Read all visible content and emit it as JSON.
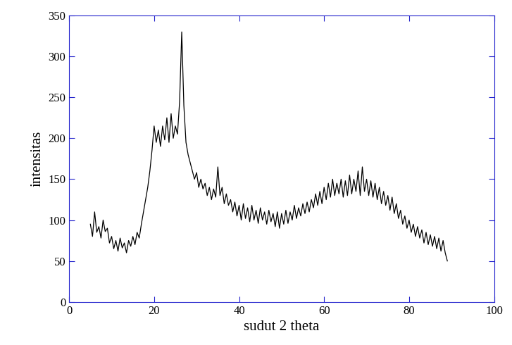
{
  "chart_data": {
    "type": "line",
    "x_label": "sudut 2 theta",
    "y_label": "intensitas",
    "color": "#000000",
    "xlim": [
      0,
      100
    ],
    "xticks": [
      0,
      20,
      40,
      60,
      80,
      100
    ],
    "ylim": [
      0,
      350
    ],
    "yticks": [
      0,
      50,
      100,
      150,
      200,
      250,
      300,
      350
    ],
    "grid": false,
    "x": [
      5.0,
      5.5,
      6.0,
      6.5,
      7.0,
      7.5,
      8.0,
      8.5,
      9.0,
      9.5,
      10.0,
      10.5,
      11.0,
      11.5,
      12.0,
      12.5,
      13.0,
      13.5,
      14.0,
      14.5,
      15.0,
      15.5,
      16.0,
      16.5,
      17.0,
      17.5,
      18.0,
      18.5,
      19.0,
      19.5,
      20.0,
      20.5,
      21.0,
      21.5,
      22.0,
      22.5,
      23.0,
      23.5,
      24.0,
      24.5,
      25.0,
      25.5,
      26.0,
      26.5,
      27.0,
      27.5,
      28.0,
      28.5,
      29.0,
      29.5,
      30.0,
      30.5,
      31.0,
      31.5,
      32.0,
      32.5,
      33.0,
      33.5,
      34.0,
      34.5,
      35.0,
      35.5,
      36.0,
      36.5,
      37.0,
      37.5,
      38.0,
      38.5,
      39.0,
      39.5,
      40.0,
      40.5,
      41.0,
      41.5,
      42.0,
      42.5,
      43.0,
      43.5,
      44.0,
      44.5,
      45.0,
      45.5,
      46.0,
      46.5,
      47.0,
      47.5,
      48.0,
      48.5,
      49.0,
      49.5,
      50.0,
      50.5,
      51.0,
      51.5,
      52.0,
      52.5,
      53.0,
      53.5,
      54.0,
      54.5,
      55.0,
      55.5,
      56.0,
      56.5,
      57.0,
      57.5,
      58.0,
      58.5,
      59.0,
      59.5,
      60.0,
      60.5,
      61.0,
      61.5,
      62.0,
      62.5,
      63.0,
      63.5,
      64.0,
      64.5,
      65.0,
      65.5,
      66.0,
      66.5,
      67.0,
      67.5,
      68.0,
      68.5,
      69.0,
      69.5,
      70.0,
      70.5,
      71.0,
      71.5,
      72.0,
      72.5,
      73.0,
      73.5,
      74.0,
      74.5,
      75.0,
      75.5,
      76.0,
      76.5,
      77.0,
      77.5,
      78.0,
      78.5,
      79.0,
      79.5,
      80.0,
      80.5,
      81.0,
      81.5,
      82.0,
      82.5,
      83.0,
      83.5,
      84.0,
      84.5,
      85.0,
      85.5,
      86.0,
      86.5,
      87.0,
      87.5,
      88.0,
      88.5,
      89.0
    ],
    "values": [
      95,
      80,
      110,
      85,
      92,
      78,
      100,
      86,
      90,
      72,
      80,
      65,
      75,
      62,
      78,
      66,
      72,
      60,
      75,
      68,
      80,
      70,
      85,
      78,
      95,
      110,
      125,
      140,
      160,
      185,
      215,
      195,
      210,
      190,
      215,
      198,
      225,
      195,
      230,
      200,
      215,
      205,
      245,
      330,
      240,
      195,
      180,
      170,
      160,
      150,
      158,
      140,
      150,
      138,
      145,
      130,
      140,
      125,
      138,
      128,
      165,
      130,
      140,
      120,
      132,
      118,
      125,
      110,
      122,
      105,
      118,
      100,
      120,
      102,
      115,
      98,
      118,
      100,
      112,
      96,
      115,
      100,
      110,
      95,
      112,
      98,
      108,
      92,
      110,
      90,
      108,
      95,
      112,
      96,
      110,
      100,
      118,
      102,
      115,
      105,
      120,
      108,
      122,
      110,
      125,
      115,
      132,
      118,
      135,
      120,
      140,
      125,
      145,
      128,
      150,
      130,
      145,
      132,
      150,
      128,
      148,
      130,
      155,
      132,
      150,
      135,
      160,
      130,
      165,
      135,
      150,
      130,
      148,
      128,
      145,
      125,
      140,
      120,
      135,
      118,
      130,
      112,
      128,
      108,
      120,
      102,
      112,
      95,
      105,
      90,
      100,
      85,
      95,
      80,
      92,
      78,
      88,
      72,
      85,
      70,
      82,
      68,
      80,
      65,
      78,
      62,
      75,
      60,
      50
    ]
  }
}
